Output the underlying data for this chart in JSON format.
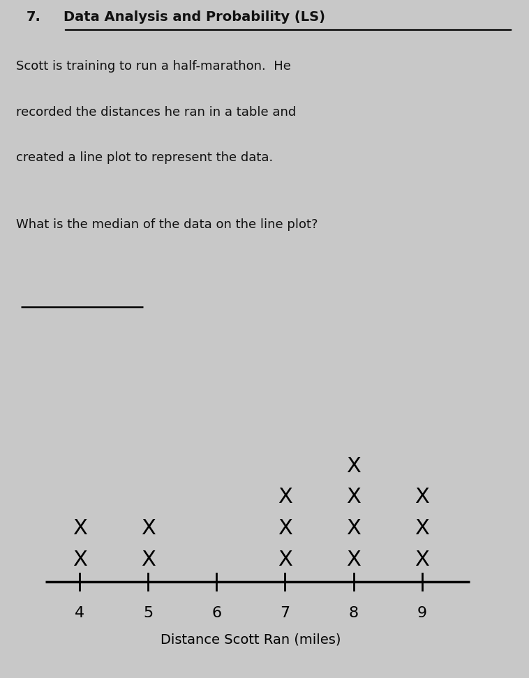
{
  "title_number": "7.",
  "title_subject": "Data Analysis and Probability (LS)",
  "description_lines": [
    "Scott is training to run a half-marathon.  He",
    "recorded the distances he ran in a table and",
    "created a line plot to represent the data."
  ],
  "question": "What is the median of the data on the line plot?",
  "xlabel": "Distance Scott Ran (miles)",
  "x_ticks": [
    4,
    5,
    6,
    7,
    8,
    9
  ],
  "counts": {
    "4": 2,
    "5": 2,
    "6": 0,
    "7": 3,
    "8": 4,
    "9": 3
  },
  "background_color": "#c8c8c8",
  "text_color": "#111111"
}
